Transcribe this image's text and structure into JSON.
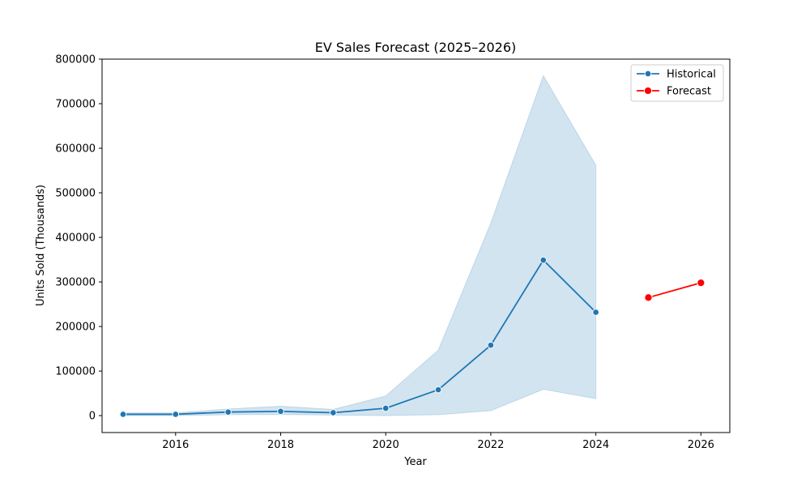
{
  "chart_data": {
    "type": "line",
    "title": "EV Sales Forecast (2025–2026)",
    "xlabel": "Year",
    "ylabel": "Units Sold (Thousands)",
    "xlim": [
      2014.6,
      2026.55
    ],
    "ylim": [
      -38000,
      800000
    ],
    "xticks": [
      2016,
      2018,
      2020,
      2022,
      2024,
      2026
    ],
    "yticks": [
      0,
      100000,
      200000,
      300000,
      400000,
      500000,
      600000,
      700000,
      800000
    ],
    "grid": false,
    "legend_position": "top-right",
    "series": [
      {
        "name": "Historical",
        "color": "#1f77b4",
        "marker_size": "small",
        "x": [
          2015,
          2016,
          2017,
          2018,
          2019,
          2020,
          2021,
          2022,
          2023,
          2024
        ],
        "y": [
          3000,
          3000,
          8000,
          9500,
          6500,
          16500,
          58000,
          158000,
          349000,
          232000
        ],
        "band_lower": [
          0,
          0,
          2000,
          2500,
          1000,
          0,
          2000,
          11000,
          59000,
          38000
        ],
        "band_upper": [
          6000,
          6000,
          15000,
          21000,
          14000,
          44000,
          147000,
          432000,
          763000,
          562000
        ]
      },
      {
        "name": "Forecast",
        "color": "#ff0000",
        "marker_size": "large",
        "x": [
          2025,
          2026
        ],
        "y": [
          265000,
          298000
        ]
      }
    ]
  }
}
